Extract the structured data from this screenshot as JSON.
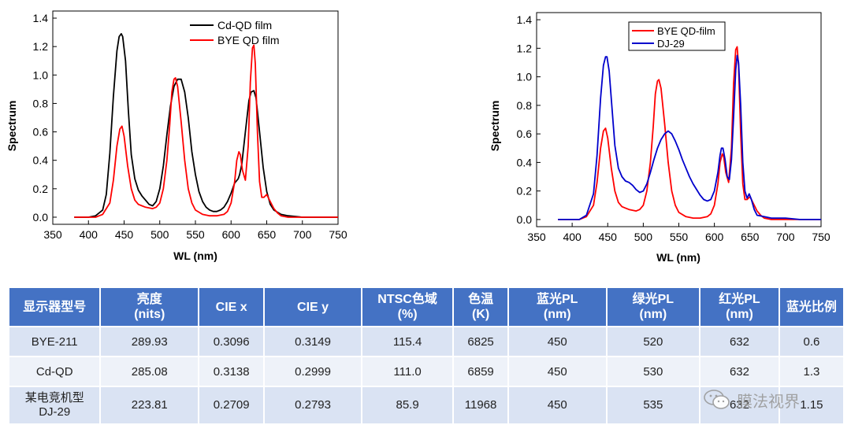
{
  "charts": [
    {
      "id": "left",
      "legend": [
        {
          "name": "Cd-QD film",
          "color": "#000000"
        },
        {
          "name": "BYE QD film",
          "color": "#ff0000"
        }
      ]
    },
    {
      "id": "right",
      "legend": [
        {
          "name": "BYE QD-film",
          "color": "#ff0000"
        },
        {
          "name": "DJ-29",
          "color": "#0000cc"
        }
      ]
    }
  ],
  "chart_data": [
    {
      "type": "line",
      "title": "",
      "xlabel": "WL (nm)",
      "ylabel": "Spectrum",
      "xlim": [
        350,
        750
      ],
      "ylim": [
        -0.05,
        1.45
      ],
      "xticks": [
        "350",
        "400",
        "450",
        "500",
        "550",
        "600",
        "650",
        "700",
        "750"
      ],
      "yticks": [
        "0.0",
        "0.2",
        "0.4",
        "0.6",
        "0.8",
        "1.0",
        "1.2",
        "1.4"
      ],
      "legend_position": "top-right",
      "series": [
        {
          "name": "Cd-QD film",
          "color": "#000000",
          "x": [
            380,
            400,
            410,
            420,
            425,
            430,
            435,
            440,
            443,
            446,
            448,
            452,
            456,
            460,
            465,
            470,
            475,
            480,
            485,
            490,
            495,
            500,
            505,
            510,
            515,
            520,
            525,
            530,
            535,
            540,
            545,
            550,
            555,
            560,
            565,
            570,
            575,
            580,
            585,
            590,
            595,
            600,
            605,
            610,
            612,
            615,
            620,
            625,
            628,
            632,
            635,
            640,
            645,
            650,
            655,
            660,
            670,
            680,
            700,
            720,
            750
          ],
          "y": [
            0.0,
            0.0,
            0.01,
            0.05,
            0.16,
            0.45,
            0.85,
            1.17,
            1.27,
            1.29,
            1.27,
            1.1,
            0.75,
            0.44,
            0.27,
            0.19,
            0.15,
            0.12,
            0.09,
            0.08,
            0.11,
            0.2,
            0.36,
            0.58,
            0.78,
            0.92,
            0.97,
            0.97,
            0.88,
            0.7,
            0.46,
            0.3,
            0.18,
            0.11,
            0.07,
            0.05,
            0.04,
            0.04,
            0.05,
            0.07,
            0.11,
            0.17,
            0.24,
            0.27,
            0.3,
            0.37,
            0.6,
            0.82,
            0.88,
            0.89,
            0.84,
            0.6,
            0.35,
            0.18,
            0.09,
            0.05,
            0.02,
            0.01,
            0.0,
            0.0,
            0.0
          ]
        },
        {
          "name": "BYE QD film",
          "color": "#ff0000",
          "x": [
            380,
            400,
            410,
            420,
            430,
            435,
            440,
            444,
            447,
            450,
            455,
            460,
            465,
            470,
            475,
            480,
            490,
            495,
            500,
            505,
            510,
            514,
            517,
            520,
            522,
            525,
            530,
            535,
            540,
            545,
            550,
            560,
            570,
            580,
            590,
            595,
            600,
            605,
            608,
            611,
            613,
            616,
            620,
            624,
            627,
            630,
            632,
            634,
            637,
            640,
            643,
            646,
            650,
            655,
            660,
            665,
            670,
            680,
            700,
            750
          ],
          "y": [
            0.0,
            0.0,
            0.0,
            0.02,
            0.1,
            0.26,
            0.5,
            0.62,
            0.64,
            0.57,
            0.36,
            0.2,
            0.12,
            0.09,
            0.08,
            0.07,
            0.06,
            0.07,
            0.1,
            0.2,
            0.4,
            0.65,
            0.88,
            0.97,
            0.98,
            0.92,
            0.67,
            0.4,
            0.2,
            0.1,
            0.05,
            0.02,
            0.01,
            0.01,
            0.02,
            0.04,
            0.1,
            0.25,
            0.4,
            0.46,
            0.44,
            0.33,
            0.26,
            0.5,
            0.95,
            1.19,
            1.21,
            1.08,
            0.6,
            0.25,
            0.14,
            0.14,
            0.16,
            0.11,
            0.06,
            0.03,
            0.01,
            0.0,
            0.0,
            0.0
          ]
        }
      ]
    },
    {
      "type": "line",
      "title": "",
      "xlabel": "WL (nm)",
      "ylabel": "Spectrum",
      "xlim": [
        350,
        750
      ],
      "ylim": [
        -0.05,
        1.45
      ],
      "xticks": [
        "350",
        "400",
        "450",
        "500",
        "550",
        "600",
        "650",
        "700",
        "750"
      ],
      "yticks": [
        "0.0",
        "0.2",
        "0.4",
        "0.6",
        "0.8",
        "1.0",
        "1.2",
        "1.4"
      ],
      "legend_position": "top-left",
      "series": [
        {
          "name": "BYE QD-film",
          "color": "#ff0000",
          "x": [
            380,
            400,
            410,
            420,
            430,
            435,
            440,
            444,
            447,
            450,
            455,
            460,
            465,
            470,
            475,
            480,
            490,
            495,
            500,
            505,
            510,
            514,
            517,
            520,
            522,
            525,
            530,
            535,
            540,
            545,
            550,
            560,
            570,
            580,
            590,
            595,
            600,
            605,
            608,
            611,
            613,
            616,
            620,
            624,
            627,
            630,
            632,
            634,
            637,
            640,
            643,
            646,
            650,
            655,
            660,
            665,
            670,
            680,
            700,
            750
          ],
          "y": [
            0.0,
            0.0,
            0.0,
            0.02,
            0.1,
            0.26,
            0.5,
            0.62,
            0.64,
            0.57,
            0.36,
            0.2,
            0.12,
            0.09,
            0.08,
            0.07,
            0.06,
            0.07,
            0.1,
            0.2,
            0.4,
            0.65,
            0.88,
            0.97,
            0.98,
            0.92,
            0.67,
            0.4,
            0.2,
            0.1,
            0.05,
            0.02,
            0.01,
            0.01,
            0.02,
            0.04,
            0.1,
            0.25,
            0.4,
            0.46,
            0.44,
            0.33,
            0.26,
            0.5,
            0.95,
            1.19,
            1.21,
            1.08,
            0.6,
            0.25,
            0.14,
            0.14,
            0.16,
            0.11,
            0.06,
            0.03,
            0.01,
            0.0,
            0.0,
            0.0
          ]
        },
        {
          "name": "DJ-29",
          "color": "#0000cc",
          "x": [
            380,
            400,
            410,
            420,
            430,
            435,
            440,
            444,
            447,
            449,
            452,
            456,
            460,
            465,
            470,
            475,
            480,
            485,
            490,
            495,
            500,
            505,
            510,
            515,
            520,
            525,
            530,
            535,
            540,
            545,
            550,
            555,
            560,
            565,
            570,
            575,
            580,
            585,
            590,
            595,
            600,
            605,
            608,
            610,
            612,
            615,
            618,
            621,
            624,
            627,
            630,
            632,
            634,
            637,
            640,
            643,
            646,
            649,
            652,
            656,
            660,
            670,
            680,
            700,
            720,
            750
          ],
          "y": [
            0.0,
            0.0,
            0.0,
            0.03,
            0.18,
            0.45,
            0.85,
            1.08,
            1.14,
            1.14,
            1.04,
            0.78,
            0.52,
            0.36,
            0.3,
            0.27,
            0.26,
            0.24,
            0.21,
            0.19,
            0.2,
            0.25,
            0.33,
            0.42,
            0.5,
            0.56,
            0.6,
            0.62,
            0.6,
            0.55,
            0.49,
            0.42,
            0.36,
            0.3,
            0.25,
            0.21,
            0.17,
            0.14,
            0.13,
            0.14,
            0.2,
            0.33,
            0.45,
            0.5,
            0.5,
            0.42,
            0.3,
            0.28,
            0.42,
            0.72,
            1.05,
            1.15,
            1.1,
            0.8,
            0.4,
            0.2,
            0.15,
            0.18,
            0.14,
            0.07,
            0.03,
            0.02,
            0.01,
            0.01,
            0.0,
            0.0
          ]
        }
      ]
    }
  ],
  "table": {
    "headers": [
      {
        "l1": "显示器型号",
        "l2": ""
      },
      {
        "l1": "亮度",
        "l2": "(nits)"
      },
      {
        "l1": "CIE x",
        "l2": ""
      },
      {
        "l1": "CIE y",
        "l2": ""
      },
      {
        "l1": "NTSC色域",
        "l2": "(%)"
      },
      {
        "l1": "色温",
        "l2": "(K)"
      },
      {
        "l1": "蓝光PL",
        "l2": "(nm)"
      },
      {
        "l1": "绿光PL",
        "l2": "(nm)"
      },
      {
        "l1": "红光PL",
        "l2": "(nm)"
      },
      {
        "l1": "蓝光比例",
        "l2": ""
      }
    ],
    "rows": [
      {
        "model_l1": "BYE-211",
        "model_l2": "",
        "brightness": "289.93",
        "cie_x": "0.3096",
        "cie_y": "0.3149",
        "ntsc": "115.4",
        "cct": "6825",
        "blue_pl": "450",
        "green_pl": "520",
        "red_pl": "632",
        "blue_ratio": "0.6"
      },
      {
        "model_l1": "Cd-QD",
        "model_l2": "",
        "brightness": "285.08",
        "cie_x": "0.3138",
        "cie_y": "0.2999",
        "ntsc": "111.0",
        "cct": "6859",
        "blue_pl": "450",
        "green_pl": "530",
        "red_pl": "632",
        "blue_ratio": "1.3"
      },
      {
        "model_l1": "某电竞机型",
        "model_l2": "DJ-29",
        "brightness": "223.81",
        "cie_x": "0.2709",
        "cie_y": "0.2793",
        "ntsc": "85.9",
        "cct": "11968",
        "blue_pl": "450",
        "green_pl": "535",
        "red_pl": "632",
        "blue_ratio": "1.15"
      }
    ]
  },
  "watermark": {
    "text": "膜法视界",
    "icon": "wechat-icon"
  }
}
